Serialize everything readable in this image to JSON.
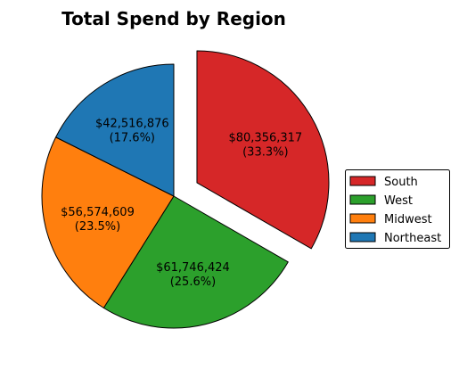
{
  "chart_data": {
    "type": "pie",
    "title": "Total Spend by Region",
    "slices": [
      {
        "label": "South",
        "value": 80356317,
        "value_label": "$80,356,317",
        "percent_label": "(33.3%)",
        "color": "#d62728",
        "exploded": true
      },
      {
        "label": "West",
        "value": 61746424,
        "value_label": "$61,746,424",
        "percent_label": "(25.6%)",
        "color": "#2ca02c",
        "exploded": false
      },
      {
        "label": "Midwest",
        "value": 56574609,
        "value_label": "$56,574,609",
        "percent_label": "(23.5%)",
        "color": "#ff7f0e",
        "exploded": false
      },
      {
        "label": "Northeast",
        "value": 42516876,
        "value_label": "$42,516,876",
        "percent_label": "(17.6%)",
        "color": "#1f77b4",
        "exploded": false
      }
    ],
    "legend": {
      "position": "right",
      "entries": [
        "South",
        "West",
        "Midwest",
        "Northeast"
      ]
    }
  }
}
